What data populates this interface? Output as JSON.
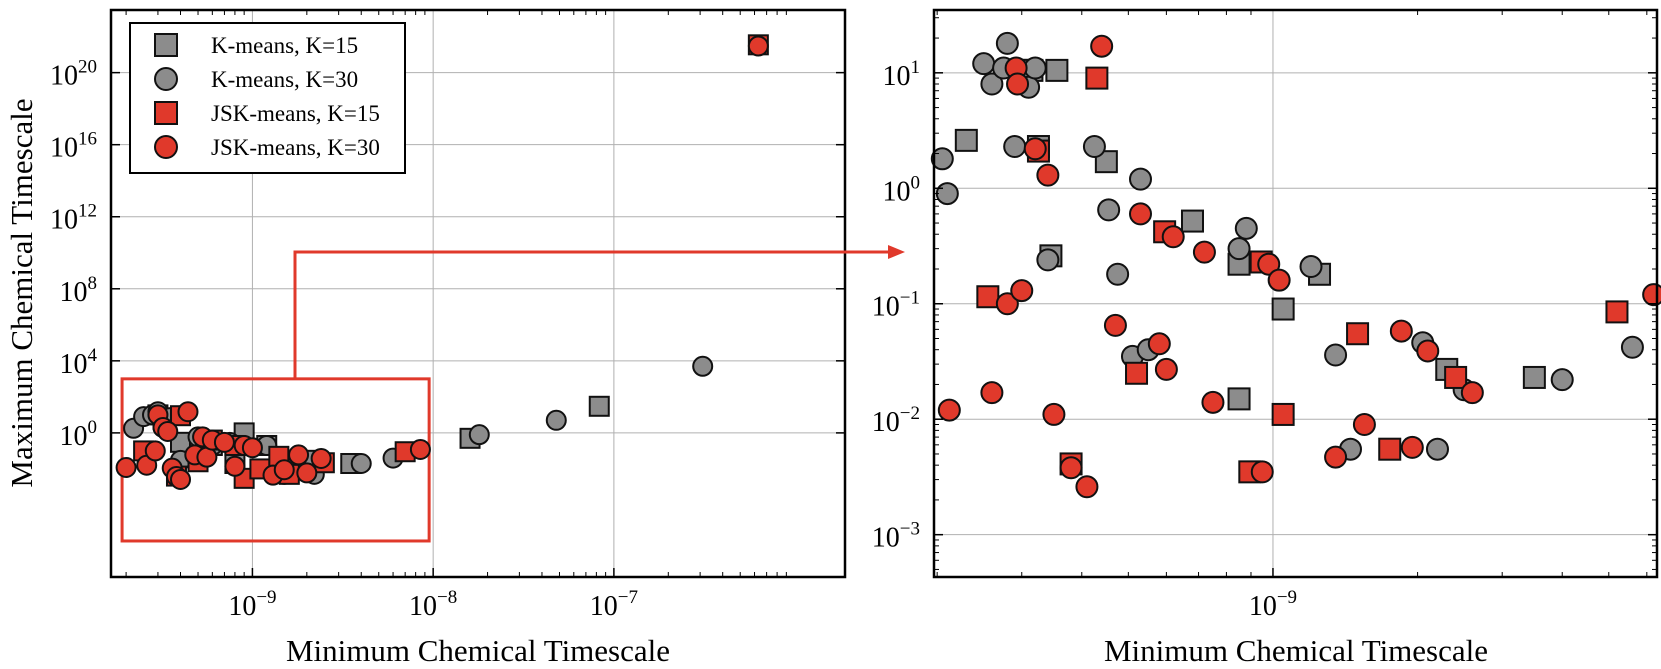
{
  "colors": {
    "kmeans": "#8c8c8c",
    "jsk": "#e0392b",
    "arrow": "#e0392b",
    "grid": "#b0b0b0"
  },
  "legend": [
    {
      "label": "K-means, K=15",
      "marker": "square",
      "color_key": "kmeans"
    },
    {
      "label": "K-means, K=30",
      "marker": "circle",
      "color_key": "kmeans"
    },
    {
      "label": "JSK-means, K=15",
      "marker": "square",
      "color_key": "jsk"
    },
    {
      "label": "JSK-means, K=30",
      "marker": "circle",
      "color_key": "jsk"
    }
  ],
  "chart_data": [
    {
      "type": "scatter",
      "panel": "left",
      "xlabel": "Minimum Chemical Timescale",
      "ylabel": "Maximum Chemical Timescale",
      "xscale": "log",
      "yscale": "log",
      "xlim": [
        1.65e-10,
        1.9e-06
      ],
      "ylim": [
        1e-08,
        3e+23
      ],
      "xticks": [
        {
          "value": 1e-09,
          "base": "10",
          "exp": "−9"
        },
        {
          "value": 1e-08,
          "base": "10",
          "exp": "−8"
        },
        {
          "value": 1e-07,
          "base": "10",
          "exp": "−7"
        }
      ],
      "yticks": [
        {
          "value": 1,
          "base": "10",
          "exp": "0"
        },
        {
          "value": 10000.0,
          "base": "10",
          "exp": "4"
        },
        {
          "value": 100000000.0,
          "base": "10",
          "exp": "8"
        },
        {
          "value": 1000000000000.0,
          "base": "10",
          "exp": "12"
        },
        {
          "value": 1e+16,
          "base": "10",
          "exp": "16"
        },
        {
          "value": 1e+20,
          "base": "10",
          "exp": "20"
        }
      ],
      "zoom_box": {
        "x": [
          1.9e-10,
          9.5e-09
        ],
        "y": [
          1e-06,
          1000.0
        ]
      },
      "series": [
        {
          "name": "K-means, K=15",
          "marker": "square",
          "points": [
            [
              1.6e-08,
              0.5
            ],
            [
              8.3e-08,
              30
            ],
            [
              3.5e-09,
              0.02
            ],
            [
              8e-10,
              0.02
            ],
            [
              6e-10,
              0.2
            ],
            [
              4e-10,
              0.3
            ],
            [
              1.5e-09,
              0.01
            ],
            [
              2.2e-09,
              0.03
            ],
            [
              1.2e-09,
              0.2
            ],
            [
              3e-10,
              10
            ],
            [
              9e-10,
              1
            ]
          ]
        },
        {
          "name": "K-means, K=30",
          "marker": "circle",
          "points": [
            [
              2.2e-10,
              1.8
            ],
            [
              2.5e-10,
              8
            ],
            [
              2.8e-10,
              10
            ],
            [
              3e-10,
              15
            ],
            [
              3.2e-10,
              2
            ],
            [
              3.5e-10,
              7
            ],
            [
              4e-10,
              0.03
            ],
            [
              5e-10,
              0.6
            ],
            [
              6e-10,
              0.2
            ],
            [
              7.5e-10,
              0.3
            ],
            [
              9e-10,
              0.2
            ],
            [
              1.2e-09,
              0.2
            ],
            [
              1.5e-09,
              0.005
            ],
            [
              2.2e-09,
              0.005
            ],
            [
              4e-09,
              0.02
            ],
            [
              6e-09,
              0.04
            ],
            [
              1.8e-08,
              0.8
            ],
            [
              4.8e-08,
              5
            ],
            [
              3.1e-07,
              5000
            ]
          ]
        },
        {
          "name": "JSK-means, K=15",
          "marker": "square",
          "points": [
            [
              6.3e-07,
              3.5e+21
            ],
            [
              2.5e-10,
              0.1
            ],
            [
              3.8e-10,
              0.004
            ],
            [
              4e-10,
              9
            ],
            [
              5e-10,
              0.025
            ],
            [
              6e-10,
              0.4
            ],
            [
              8e-10,
              0.2
            ],
            [
              9e-10,
              0.003
            ],
            [
              1.1e-09,
              0.01
            ],
            [
              1.4e-09,
              0.05
            ],
            [
              1.6e-09,
              0.005
            ],
            [
              2.5e-09,
              0.022
            ],
            [
              7e-09,
              0.09
            ]
          ]
        },
        {
          "name": "JSK-means, K=30",
          "marker": "circle",
          "points": [
            [
              6.3e-07,
              3e+21
            ],
            [
              2e-10,
              0.012
            ],
            [
              2.6e-10,
              0.016
            ],
            [
              2.9e-10,
              0.1
            ],
            [
              3e-10,
              10
            ],
            [
              3.2e-10,
              2
            ],
            [
              3.4e-10,
              1.2
            ],
            [
              3.6e-10,
              0.011
            ],
            [
              3.8e-10,
              0.0038
            ],
            [
              4e-10,
              0.0026
            ],
            [
              4.4e-10,
              15
            ],
            [
              4.8e-10,
              0.06
            ],
            [
              5.3e-10,
              0.6
            ],
            [
              5.6e-10,
              0.045
            ],
            [
              6e-10,
              0.4
            ],
            [
              7e-10,
              0.3
            ],
            [
              8e-10,
              0.014
            ],
            [
              9e-10,
              0.2
            ],
            [
              1e-09,
              0.15
            ],
            [
              1.3e-09,
              0.0045
            ],
            [
              1.5e-09,
              0.009
            ],
            [
              1.8e-09,
              0.06
            ],
            [
              2e-09,
              0.006
            ],
            [
              2.4e-09,
              0.038
            ],
            [
              8.5e-09,
              0.12
            ]
          ]
        }
      ]
    },
    {
      "type": "scatter",
      "panel": "right",
      "xlabel": "Minimum Chemical Timescale",
      "ylabel": "",
      "xscale": "log",
      "yscale": "log",
      "xlim": [
        1.97e-10,
        6.3e-09
      ],
      "ylim": [
        0.00043,
        35
      ],
      "xticks": [
        {
          "value": 1e-09,
          "base": "10",
          "exp": "−9"
        }
      ],
      "yticks": [
        {
          "value": 0.001,
          "base": "10",
          "exp": "−3"
        },
        {
          "value": 0.01,
          "base": "10",
          "exp": "−2"
        },
        {
          "value": 0.1,
          "base": "10",
          "exp": "−1"
        },
        {
          "value": 1,
          "base": "10",
          "exp": "0"
        },
        {
          "value": 10,
          "base": "10",
          "exp": "1"
        }
      ],
      "series": [
        {
          "name": "K-means, K=15",
          "marker": "square",
          "points": [
            [
              2.3e-10,
              2.6
            ],
            [
              3e-10,
              10.5
            ],
            [
              3.15e-10,
              10.5
            ],
            [
              3.25e-10,
              2.3
            ],
            [
              3.45e-10,
              0.26
            ],
            [
              3.55e-10,
              10.5
            ],
            [
              4.5e-10,
              1.7
            ],
            [
              6.8e-10,
              0.52
            ],
            [
              8.5e-10,
              0.22
            ],
            [
              1.05e-09,
              0.09
            ],
            [
              1.25e-09,
              0.18
            ],
            [
              2.3e-09,
              0.027
            ],
            [
              3.5e-09,
              0.023
            ],
            [
              8.5e-10,
              0.015
            ]
          ]
        },
        {
          "name": "K-means, K=30",
          "marker": "circle",
          "points": [
            [
              2.05e-10,
              1.8
            ],
            [
              2.1e-10,
              0.9
            ],
            [
              2.5e-10,
              12
            ],
            [
              2.6e-10,
              8
            ],
            [
              2.75e-10,
              11
            ],
            [
              2.8e-10,
              18
            ],
            [
              2.9e-10,
              2.3
            ],
            [
              3.1e-10,
              7.5
            ],
            [
              3.2e-10,
              11
            ],
            [
              3.4e-10,
              0.24
            ],
            [
              4.25e-10,
              2.3
            ],
            [
              4.55e-10,
              0.65
            ],
            [
              4.75e-10,
              0.18
            ],
            [
              5.1e-10,
              0.035
            ],
            [
              5.3e-10,
              1.2
            ],
            [
              5.5e-10,
              0.04
            ],
            [
              8.5e-10,
              0.3
            ],
            [
              8.8e-10,
              0.45
            ],
            [
              1.2e-09,
              0.21
            ],
            [
              1.35e-09,
              0.036
            ],
            [
              1.45e-09,
              0.0055
            ],
            [
              2.05e-09,
              0.046
            ],
            [
              2.2e-09,
              0.0055
            ],
            [
              2.5e-09,
              0.018
            ],
            [
              4e-09,
              0.022
            ],
            [
              5.6e-09,
              0.042
            ]
          ]
        },
        {
          "name": "JSK-means, K=15",
          "marker": "square",
          "points": [
            [
              2.55e-10,
              0.115
            ],
            [
              3.25e-10,
              2.1
            ],
            [
              3.8e-10,
              0.0041
            ],
            [
              4.3e-10,
              9
            ],
            [
              5.2e-10,
              0.025
            ],
            [
              5.95e-10,
              0.42
            ],
            [
              8.95e-10,
              0.0035
            ],
            [
              9.45e-10,
              0.23
            ],
            [
              1.05e-09,
              0.011
            ],
            [
              1.5e-09,
              0.055
            ],
            [
              1.75e-09,
              0.0055
            ],
            [
              2.4e-09,
              0.023
            ],
            [
              5.2e-09,
              0.085
            ]
          ]
        },
        {
          "name": "JSK-means, K=30",
          "marker": "circle",
          "points": [
            [
              2.12e-10,
              0.012
            ],
            [
              2.6e-10,
              0.017
            ],
            [
              2.8e-10,
              0.1
            ],
            [
              2.92e-10,
              11
            ],
            [
              2.94e-10,
              8
            ],
            [
              3e-10,
              0.13
            ],
            [
              3.2e-10,
              2.2
            ],
            [
              3.4e-10,
              1.3
            ],
            [
              3.5e-10,
              0.011
            ],
            [
              3.8e-10,
              0.0038
            ],
            [
              4.1e-10,
              0.0026
            ],
            [
              4.4e-10,
              17
            ],
            [
              4.7e-10,
              0.065
            ],
            [
              5.3e-10,
              0.6
            ],
            [
              5.8e-10,
              0.045
            ],
            [
              6e-10,
              0.027
            ],
            [
              6.2e-10,
              0.38
            ],
            [
              7.2e-10,
              0.28
            ],
            [
              7.5e-10,
              0.014
            ],
            [
              9.5e-10,
              0.0035
            ],
            [
              9.8e-10,
              0.22
            ],
            [
              1.03e-09,
              0.16
            ],
            [
              1.35e-09,
              0.0047
            ],
            [
              1.55e-09,
              0.009
            ],
            [
              1.85e-09,
              0.058
            ],
            [
              1.95e-09,
              0.0057
            ],
            [
              2.1e-09,
              0.039
            ],
            [
              2.6e-09,
              0.017
            ],
            [
              6.2e-09,
              0.12
            ]
          ]
        }
      ]
    }
  ]
}
